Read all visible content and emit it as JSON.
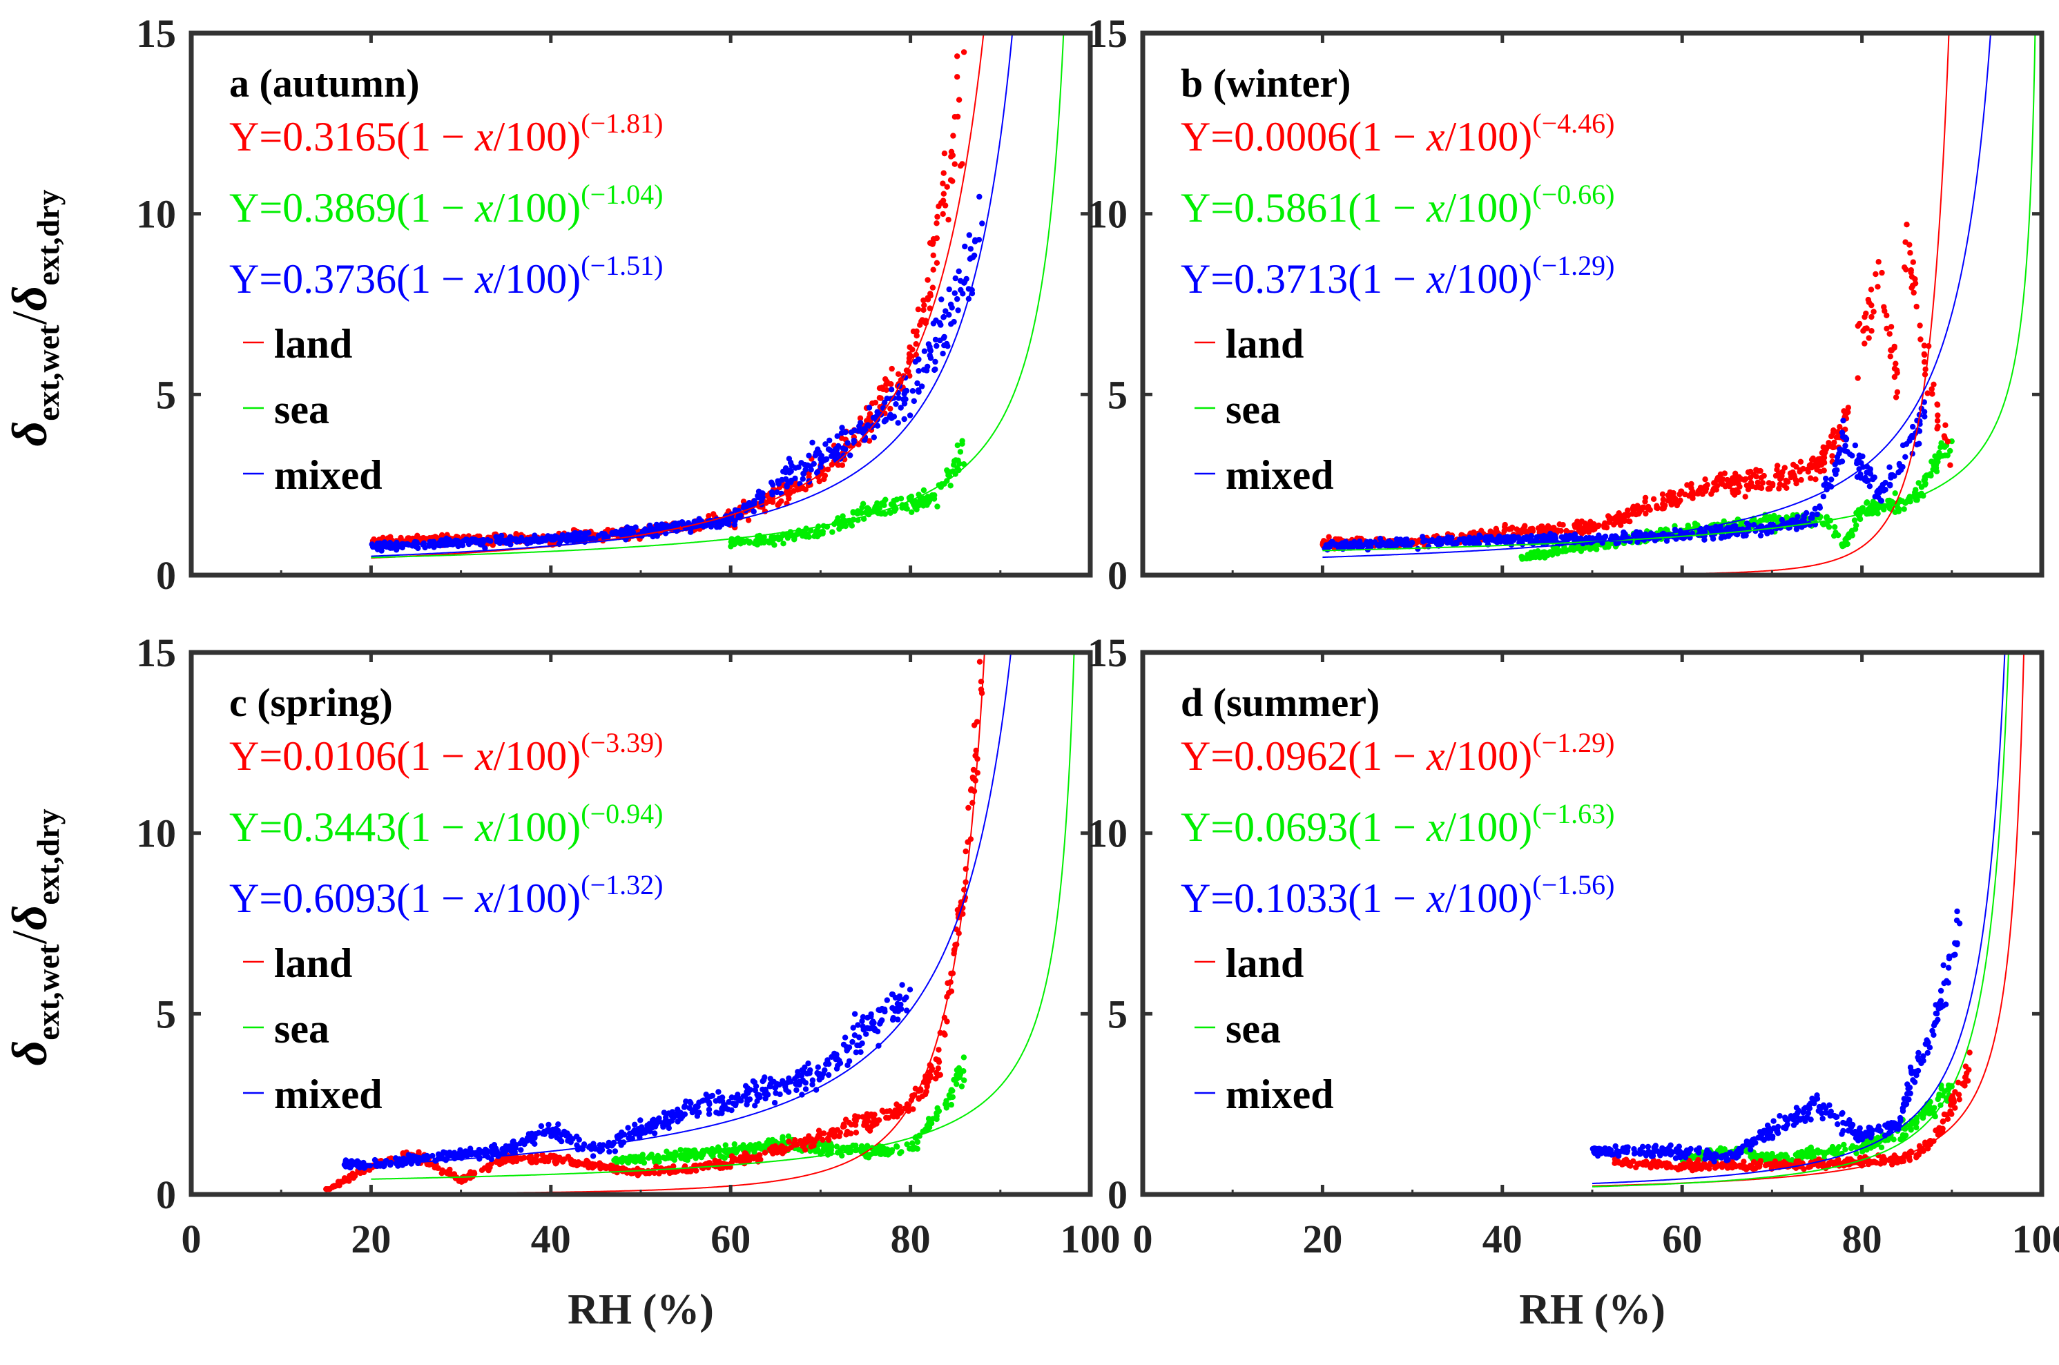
{
  "figure": {
    "xlabel": "RH (%)",
    "ylabel_main": "δ",
    "ylabel_sub_wet": "ext,wet",
    "ylabel_slash": "/",
    "ylabel_sub_dry": "ext,dry",
    "legend": [
      "land",
      "sea",
      "mixed"
    ]
  },
  "colors": {
    "land": "#ff0000",
    "sea": "#00ee00",
    "mixed": "#0000ff",
    "axis": "#333333"
  },
  "chart_data": [
    {
      "type": "scatter",
      "title": "a (autumn)",
      "xlim": [
        0,
        100
      ],
      "ylim": [
        0,
        15
      ],
      "xticks": [
        0,
        20,
        40,
        60,
        80,
        100
      ],
      "yticks": [
        0,
        5,
        10,
        15
      ],
      "series": [
        {
          "name": "land",
          "a": 0.3165,
          "b": -1.81,
          "eq_coef": "0.3165",
          "eq_exp": "(−1.81)",
          "x_range": [
            20,
            88
          ],
          "cloud": [
            [
              20,
              0.9
            ],
            [
              30,
              1.0
            ],
            [
              40,
              1.0
            ],
            [
              50,
              1.2
            ],
            [
              60,
              1.6
            ],
            [
              70,
              2.8
            ],
            [
              75,
              4.2
            ],
            [
              80,
              6.0
            ],
            [
              82,
              7.8
            ],
            [
              86,
              13.8
            ]
          ]
        },
        {
          "name": "sea",
          "a": 0.3869,
          "b": -1.04,
          "eq_coef": "0.3869",
          "eq_exp": "(−1.04)",
          "x_range": [
            20,
            86
          ],
          "cloud": [
            [
              60,
              0.9
            ],
            [
              65,
              1.0
            ],
            [
              70,
              1.2
            ],
            [
              75,
              1.8
            ],
            [
              80,
              2.0
            ],
            [
              83,
              2.2
            ],
            [
              86,
              3.5
            ]
          ]
        },
        {
          "name": "mixed",
          "a": 0.3736,
          "b": -1.51,
          "eq_coef": "0.3736",
          "eq_exp": "(−1.51)",
          "x_range": [
            20,
            88
          ],
          "cloud": [
            [
              20,
              0.8
            ],
            [
              30,
              0.9
            ],
            [
              40,
              1.0
            ],
            [
              50,
              1.2
            ],
            [
              60,
              1.5
            ],
            [
              65,
              2.5
            ],
            [
              70,
              3.3
            ],
            [
              75,
              4.0
            ],
            [
              80,
              5.0
            ],
            [
              85,
              7.5
            ],
            [
              88,
              9.8
            ]
          ]
        }
      ]
    },
    {
      "type": "scatter",
      "title": "b (winter)",
      "xlim": [
        0,
        100
      ],
      "ylim": [
        0,
        15
      ],
      "xticks": [
        0,
        20,
        40,
        60,
        80,
        100
      ],
      "yticks": [
        0,
        5,
        10,
        15
      ],
      "series": [
        {
          "name": "land",
          "a": 0.0006,
          "b": -4.46,
          "eq_coef": "0.0006",
          "eq_exp": "(−4.46)",
          "x_range": [
            20,
            90
          ],
          "cloud": [
            [
              20,
              0.9
            ],
            [
              30,
              0.9
            ],
            [
              40,
              1.2
            ],
            [
              50,
              1.3
            ],
            [
              60,
              2.2
            ],
            [
              65,
              2.6
            ],
            [
              70,
              2.6
            ],
            [
              75,
              3.0
            ],
            [
              78,
              4.0
            ],
            [
              80,
              6.5
            ],
            [
              82,
              8.5
            ],
            [
              84,
              5.5
            ],
            [
              85,
              9.5
            ],
            [
              87,
              6.0
            ],
            [
              90,
              3.0
            ]
          ]
        },
        {
          "name": "sea",
          "a": 0.5861,
          "b": -0.66,
          "eq_coef": "0.5861",
          "eq_exp": "(−0.66)",
          "x_range": [
            20,
            90
          ],
          "cloud": [
            [
              42,
              0.5
            ],
            [
              60,
              1.2
            ],
            [
              70,
              1.5
            ],
            [
              76,
              1.6
            ],
            [
              78,
              0.8
            ],
            [
              80,
              1.8
            ],
            [
              83,
              1.9
            ],
            [
              86,
              2.2
            ],
            [
              88,
              3.0
            ],
            [
              90,
              3.7
            ]
          ]
        },
        {
          "name": "mixed",
          "a": 0.3713,
          "b": -1.29,
          "eq_coef": "0.3713",
          "eq_exp": "(−1.29)",
          "x_range": [
            20,
            90
          ],
          "cloud": [
            [
              20,
              0.8
            ],
            [
              30,
              0.9
            ],
            [
              40,
              1.0
            ],
            [
              50,
              1.0
            ],
            [
              60,
              1.1
            ],
            [
              70,
              1.3
            ],
            [
              75,
              1.6
            ],
            [
              78,
              3.8
            ],
            [
              82,
              2.2
            ],
            [
              85,
              3.5
            ],
            [
              87,
              4.5
            ]
          ]
        }
      ]
    },
    {
      "type": "scatter",
      "title": "c (spring)",
      "xlim": [
        0,
        100
      ],
      "ylim": [
        0,
        15
      ],
      "xticks": [
        0,
        20,
        40,
        60,
        80,
        100
      ],
      "yticks": [
        0,
        5,
        10,
        15
      ],
      "series": [
        {
          "name": "land",
          "a": 0.0106,
          "b": -3.39,
          "eq_coef": "0.0106",
          "eq_exp": "(−3.39)",
          "x_range": [
            15,
            88
          ],
          "cloud": [
            [
              15,
              0.1
            ],
            [
              20,
              0.8
            ],
            [
              25,
              1.1
            ],
            [
              30,
              0.4
            ],
            [
              35,
              1.0
            ],
            [
              40,
              1.0
            ],
            [
              50,
              0.6
            ],
            [
              55,
              0.7
            ],
            [
              60,
              0.9
            ],
            [
              65,
              1.2
            ],
            [
              70,
              1.6
            ],
            [
              75,
              2.0
            ],
            [
              80,
              2.5
            ],
            [
              83,
              3.5
            ],
            [
              85,
              7.0
            ],
            [
              86,
              8.6
            ],
            [
              88,
              14.2
            ]
          ]
        },
        {
          "name": "sea",
          "a": 0.3443,
          "b": -0.94,
          "eq_coef": "0.3443",
          "eq_exp": "(−0.94)",
          "x_range": [
            20,
            86
          ],
          "cloud": [
            [
              47,
              0.9
            ],
            [
              55,
              1.1
            ],
            [
              60,
              1.2
            ],
            [
              65,
              1.4
            ],
            [
              70,
              1.3
            ],
            [
              75,
              1.2
            ],
            [
              80,
              1.3
            ],
            [
              84,
              2.5
            ],
            [
              86,
              3.5
            ]
          ]
        },
        {
          "name": "mixed",
          "a": 0.6093,
          "b": -1.32,
          "eq_coef": "0.6093",
          "eq_exp": "(−1.32)",
          "x_range": [
            17,
            80
          ],
          "cloud": [
            [
              17,
              0.9
            ],
            [
              20,
              0.8
            ],
            [
              25,
              1.0
            ],
            [
              30,
              1.1
            ],
            [
              35,
              1.2
            ],
            [
              40,
              1.8
            ],
            [
              45,
              1.2
            ],
            [
              50,
              1.8
            ],
            [
              55,
              2.3
            ],
            [
              60,
              2.6
            ],
            [
              65,
              3.0
            ],
            [
              70,
              3.3
            ],
            [
              75,
              4.5
            ],
            [
              80,
              5.5
            ]
          ]
        }
      ]
    },
    {
      "type": "scatter",
      "title": "d (summer)",
      "xlim": [
        0,
        100
      ],
      "ylim": [
        0,
        15
      ],
      "xticks": [
        0,
        20,
        40,
        60,
        80,
        100
      ],
      "yticks": [
        0,
        5,
        10,
        15
      ],
      "series": [
        {
          "name": "land",
          "a": 0.0962,
          "b": -1.29,
          "eq_coef": "0.0962",
          "eq_exp": "(−1.29)",
          "x_range": [
            50,
            92
          ],
          "cloud": [
            [
              52,
              0.9
            ],
            [
              60,
              0.8
            ],
            [
              70,
              0.8
            ],
            [
              80,
              0.9
            ],
            [
              85,
              1.0
            ],
            [
              88,
              1.5
            ],
            [
              90,
              2.5
            ],
            [
              92,
              3.5
            ]
          ]
        },
        {
          "name": "sea",
          "a": 0.0693,
          "b": -1.63,
          "eq_coef": "0.0693",
          "eq_exp": "(−1.63)",
          "x_range": [
            50,
            92
          ],
          "cloud": [
            [
              60,
              1.0
            ],
            [
              65,
              1.2
            ],
            [
              70,
              1.0
            ],
            [
              80,
              1.3
            ],
            [
              85,
              1.8
            ],
            [
              88,
              2.5
            ],
            [
              90,
              3.0
            ]
          ]
        },
        {
          "name": "mixed",
          "a": 0.1033,
          "b": -1.56,
          "eq_coef": "0.1033",
          "eq_exp": "(−1.56)",
          "x_range": [
            50,
            92
          ],
          "cloud": [
            [
              50,
              1.2
            ],
            [
              60,
              1.2
            ],
            [
              65,
              1.0
            ],
            [
              70,
              1.8
            ],
            [
              75,
              2.5
            ],
            [
              80,
              1.6
            ],
            [
              84,
              2.0
            ],
            [
              86,
              3.5
            ],
            [
              88,
              4.5
            ],
            [
              90,
              6.5
            ],
            [
              91,
              8.0
            ]
          ]
        }
      ]
    }
  ]
}
